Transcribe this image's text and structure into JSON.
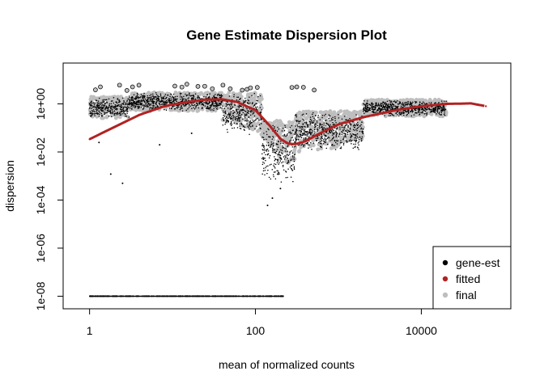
{
  "chart_data": {
    "type": "scatter",
    "title": "Gene Estimate Dispersion Plot",
    "xlabel": "mean of normalized counts",
    "ylabel": "dispersion",
    "x_scale": "log10",
    "y_scale": "log10",
    "xlim": [
      0.48,
      120000
    ],
    "ylim": [
      3e-09,
      50
    ],
    "x_ticks": [
      {
        "value": 1,
        "label": "1"
      },
      {
        "value": 100,
        "label": "100"
      },
      {
        "value": 10000,
        "label": "10000"
      }
    ],
    "y_ticks": [
      {
        "value": 1e-08,
        "label": "1e-08"
      },
      {
        "value": 1e-06,
        "label": "1e-06"
      },
      {
        "value": 0.0001,
        "label": "1e-04"
      },
      {
        "value": 0.01,
        "label": "1e-02"
      },
      {
        "value": 1,
        "label": "1e+00"
      }
    ],
    "legend_position": "bottom-right",
    "grid": false,
    "series": [
      {
        "name": "gene-est",
        "color": "#000000",
        "marker": "dot"
      },
      {
        "name": "fitted",
        "color": "#b22222",
        "marker": "dot"
      },
      {
        "name": "final",
        "color": "#bebebe",
        "marker": "dot"
      }
    ],
    "fitted_curve": {
      "x": [
        1,
        2,
        4,
        8,
        15,
        25,
        40,
        60,
        100,
        150,
        200,
        250,
        300,
        400,
        600,
        1000,
        2000,
        5000,
        10000,
        20000,
        40000,
        60000
      ],
      "y": [
        0.034,
        0.11,
        0.35,
        0.8,
        1.2,
        1.5,
        1.55,
        1.2,
        0.55,
        0.12,
        0.035,
        0.022,
        0.021,
        0.028,
        0.06,
        0.14,
        0.28,
        0.55,
        0.8,
        1.0,
        1.05,
        0.8
      ]
    },
    "cloud_bands": [
      {
        "x_min": 1,
        "x_max": 3,
        "y_low": 0.25,
        "y_high": 2
      },
      {
        "x_min": 3,
        "x_max": 40,
        "y_low": 0.5,
        "y_high": 3
      },
      {
        "x_min": 40,
        "x_max": 120,
        "y_low": 0.05,
        "y_high": 3
      },
      {
        "x_min": 120,
        "x_max": 300,
        "y_low": 0.0005,
        "y_high": 0.2
      },
      {
        "x_min": 300,
        "x_max": 2000,
        "y_low": 0.01,
        "y_high": 0.5
      },
      {
        "x_min": 2000,
        "x_max": 20000,
        "y_low": 0.3,
        "y_high": 1.5
      }
    ],
    "outlier_points": [
      {
        "x": 1.3,
        "y": 0.025
      },
      {
        "x": 1.8,
        "y": 0.0012
      },
      {
        "x": 2.5,
        "y": 0.0005
      },
      {
        "x": 7,
        "y": 0.02
      },
      {
        "x": 17,
        "y": 0.06
      },
      {
        "x": 140,
        "y": 6e-05
      },
      {
        "x": 160,
        "y": 0.00012
      },
      {
        "x": 200,
        "y": 0.0003
      }
    ],
    "floor_points": {
      "y": 1e-08,
      "x_min": 1,
      "x_max": 220
    }
  }
}
